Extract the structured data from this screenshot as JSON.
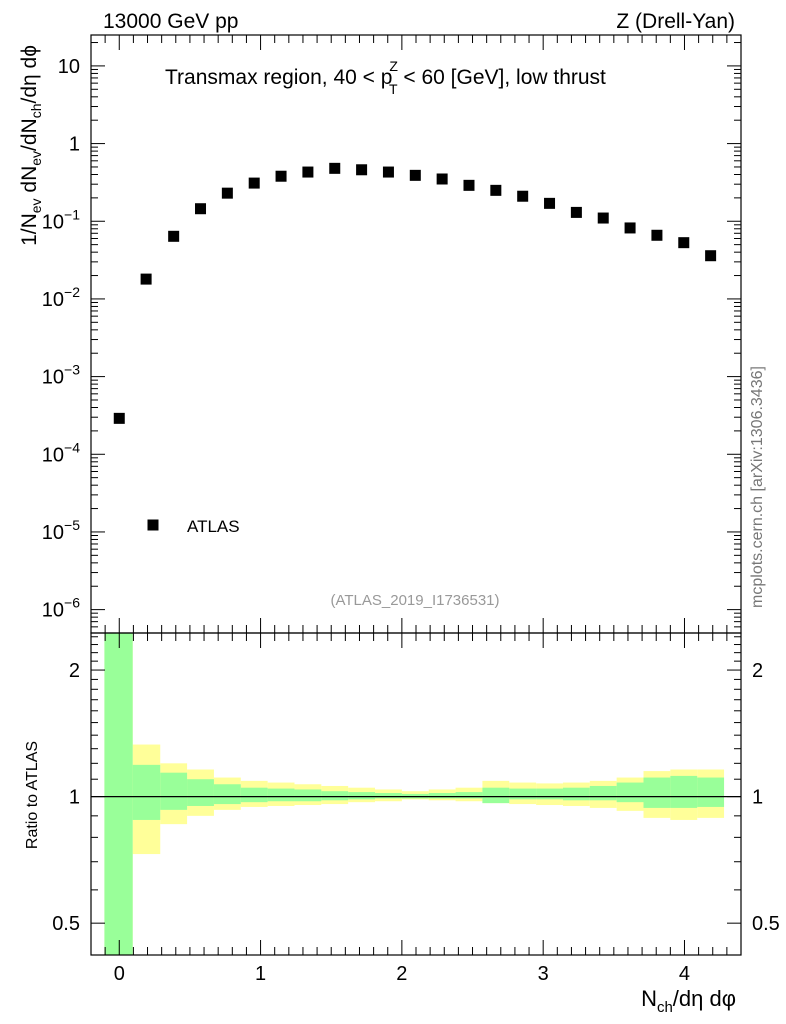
{
  "header": {
    "left": "13000 GeV pp",
    "right": "Z (Drell-Yan)"
  },
  "watermark": "mcplots.cern.ch [arXiv:1306.3436]",
  "chart_data": [
    {
      "panel": "main",
      "type": "scatter",
      "title": "Transmax region, 40 < p_T^Z < 60 [GeV], low thrust",
      "title_parts": {
        "before": "Transmax region, 40 < p",
        "sup": "Z",
        "sub": "T",
        "after": " < 60 [GeV], low thrust"
      },
      "analysis_label": "(ATLAS_2019_I1736531)",
      "ylabel": "1/N_ev dN_ev/dN_ch/dη dφ",
      "yscale": "log",
      "ylim": [
        5e-07,
        25
      ],
      "xlim": [
        -0.2,
        4.4
      ],
      "ytick_labels": [
        {
          "value": 10,
          "base": "10",
          "exp": ""
        },
        {
          "value": 1,
          "base": "1",
          "exp": ""
        },
        {
          "value": 0.1,
          "base": "10",
          "exp": "−1"
        },
        {
          "value": 0.01,
          "base": "10",
          "exp": "−2"
        },
        {
          "value": 0.001,
          "base": "10",
          "exp": "−3"
        },
        {
          "value": 0.0001,
          "base": "10",
          "exp": "−4"
        },
        {
          "value": 1e-05,
          "base": "10",
          "exp": "−5"
        },
        {
          "value": 1e-06,
          "base": "10",
          "exp": "−6"
        }
      ],
      "legend": {
        "position": "bottom-left",
        "entries": [
          "ATLAS"
        ]
      },
      "series": [
        {
          "name": "ATLAS",
          "marker": "square",
          "x": [
            0.0,
            0.19,
            0.385,
            0.575,
            0.765,
            0.955,
            1.145,
            1.335,
            1.525,
            1.715,
            1.905,
            2.095,
            2.285,
            2.475,
            2.665,
            2.855,
            3.045,
            3.235,
            3.425,
            3.615,
            3.805,
            3.995,
            4.185
          ],
          "y": [
            0.00029,
            0.018,
            0.064,
            0.145,
            0.23,
            0.31,
            0.38,
            0.43,
            0.48,
            0.46,
            0.43,
            0.39,
            0.35,
            0.29,
            0.25,
            0.21,
            0.17,
            0.13,
            0.11,
            0.082,
            0.066,
            0.053,
            0.036
          ]
        }
      ]
    },
    {
      "panel": "ratio",
      "type": "area",
      "ylabel": "Ratio to ATLAS",
      "xlabel": "N_ch/dη dφ",
      "xlabel_parts": {
        "base": "N",
        "sub": "ch",
        "rest": "/dη dφ"
      },
      "yscale": "log",
      "ylim": [
        0.42,
        2.45
      ],
      "xlim": [
        -0.2,
        4.4
      ],
      "xticks": [
        0,
        1,
        2,
        3,
        4
      ],
      "xtick_labels": [
        "0",
        "1",
        "2",
        "3",
        "4"
      ],
      "yticks": [
        0.5,
        1,
        2
      ],
      "ytick_labels": [
        "0.5",
        "1",
        "2"
      ],
      "reference_line": 1,
      "bins": [
        -0.105,
        0.095,
        0.29,
        0.48,
        0.67,
        0.86,
        1.05,
        1.24,
        1.43,
        1.62,
        1.81,
        2.0,
        2.19,
        2.38,
        2.57,
        2.76,
        2.95,
        3.14,
        3.33,
        3.52,
        3.71,
        3.9,
        4.09,
        4.28
      ],
      "series": [
        {
          "name": "total uncertainty",
          "color": "#ffff99",
          "lower": [
            0.42,
            0.73,
            0.86,
            0.9,
            0.93,
            0.945,
            0.95,
            0.955,
            0.96,
            0.97,
            0.975,
            0.985,
            0.98,
            0.975,
            0.965,
            0.96,
            0.955,
            0.95,
            0.94,
            0.925,
            0.89,
            0.88,
            0.89,
            0.875
          ],
          "upper": [
            2.45,
            1.33,
            1.2,
            1.16,
            1.11,
            1.09,
            1.08,
            1.07,
            1.06,
            1.05,
            1.04,
            1.03,
            1.04,
            1.05,
            1.09,
            1.08,
            1.075,
            1.08,
            1.09,
            1.11,
            1.15,
            1.16,
            1.16,
            1.18
          ]
        },
        {
          "name": "statistical uncertainty",
          "color": "#99ff99",
          "lower": [
            0.42,
            0.88,
            0.93,
            0.95,
            0.96,
            0.97,
            0.975,
            0.975,
            0.98,
            0.985,
            0.99,
            0.99,
            0.99,
            0.99,
            0.965,
            0.985,
            0.985,
            0.98,
            0.98,
            0.97,
            0.94,
            0.94,
            0.945,
            0.94
          ],
          "upper": [
            2.45,
            1.19,
            1.14,
            1.1,
            1.07,
            1.05,
            1.045,
            1.04,
            1.03,
            1.025,
            1.02,
            1.015,
            1.02,
            1.025,
            1.05,
            1.045,
            1.045,
            1.05,
            1.06,
            1.08,
            1.11,
            1.12,
            1.11,
            1.13
          ]
        }
      ]
    }
  ]
}
